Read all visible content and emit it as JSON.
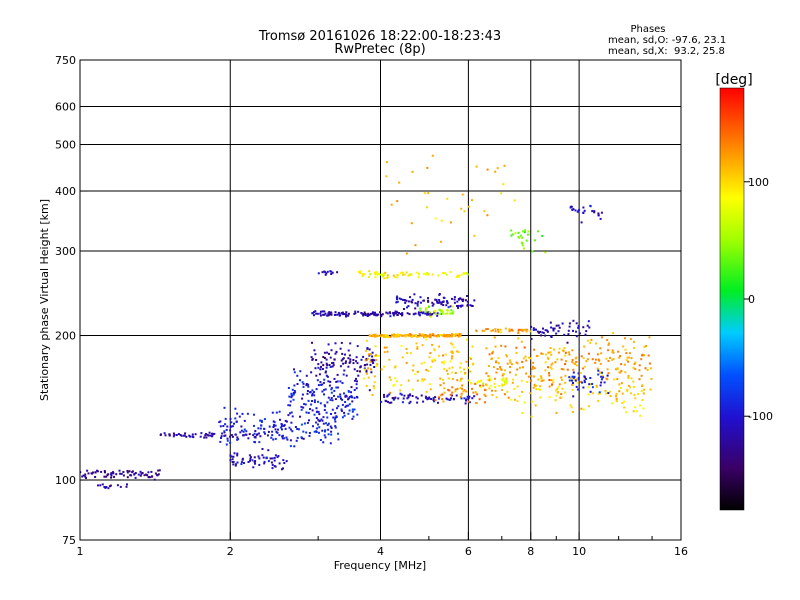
{
  "chart_data": {
    "type": "scatter",
    "title": "Tromsø 20161026 18:22:00-18:23:43",
    "subtitle": "RwPretec (8p)",
    "xlabel": "Frequency [MHz]",
    "ylabel": "Stationary phase Virtual Height [km]",
    "x_scale": "log",
    "y_scale": "log",
    "xlim": [
      1,
      16
    ],
    "ylim": [
      75,
      750
    ],
    "x_ticks": [
      1,
      2,
      4,
      6,
      8,
      10,
      16
    ],
    "y_ticks": [
      75,
      100,
      200,
      300,
      400,
      500,
      600,
      750
    ],
    "x_gridlines": [
      2,
      4,
      6,
      8,
      10
    ],
    "y_gridlines": [
      100,
      200,
      300,
      400,
      500,
      600
    ],
    "grid": true,
    "phases_note": {
      "heading": "Phases",
      "line_o": "mean, sd,O: -97.6, 23.1",
      "line_x": "mean, sd,X:  93.2, 25.8"
    },
    "colorbar": {
      "unit_label": "[deg]",
      "range": [
        -180,
        180
      ],
      "ticks": [
        100,
        0,
        -100
      ],
      "placement": "right"
    },
    "echo_traces": [
      {
        "f_range": [
          1.0,
          1.45
        ],
        "h": 103,
        "spread": 3,
        "phase": -128,
        "n": 70
      },
      {
        "f_range": [
          1.08,
          1.25
        ],
        "h": 97,
        "spread": 2,
        "phase": -118,
        "n": 14
      },
      {
        "f_range": [
          1.45,
          2.3
        ],
        "h": 124,
        "spread": 2,
        "phase": -120,
        "n": 60
      },
      {
        "f_range": [
          1.9,
          3.3
        ],
        "h": 128,
        "spread": 14,
        "phase": -95,
        "n": 170
      },
      {
        "f_range": [
          2.0,
          2.6
        ],
        "h": 110,
        "spread": 6,
        "phase": -112,
        "n": 60
      },
      {
        "f_range": [
          2.6,
          3.6
        ],
        "h": 150,
        "spread": 25,
        "phase": -95,
        "n": 160
      },
      {
        "f_range": [
          2.9,
          3.9
        ],
        "h": 175,
        "spread": 25,
        "phase": -120,
        "n": 110
      },
      {
        "f_range": [
          2.9,
          5.3
        ],
        "h": 222,
        "spread": 3,
        "phase": -118,
        "n": 130
      },
      {
        "f_range": [
          3.0,
          3.3
        ],
        "h": 270,
        "spread": 3,
        "phase": -112,
        "n": 12
      },
      {
        "f_range": [
          3.5,
          6.0
        ],
        "h": 268,
        "spread": 5,
        "phase": 85,
        "n": 70
      },
      {
        "f_range": [
          3.8,
          5.8
        ],
        "h": 200,
        "spread": 2,
        "phase": 115,
        "n": 150
      },
      {
        "f_range": [
          4.0,
          6.3
        ],
        "h": 148,
        "spread": 4,
        "phase": -108,
        "n": 70
      },
      {
        "f_range": [
          3.7,
          6.2
        ],
        "h": 175,
        "spread": 28,
        "phase": 105,
        "n": 140
      },
      {
        "f_range": [
          4.3,
          6.2
        ],
        "h": 235,
        "spread": 10,
        "phase": -115,
        "n": 90
      },
      {
        "f_range": [
          4.8,
          5.6
        ],
        "h": 225,
        "spread": 6,
        "phase": 55,
        "n": 30
      },
      {
        "f_range": [
          5.0,
          6.5
        ],
        "h": 152,
        "spread": 8,
        "phase": 130,
        "n": 40
      },
      {
        "f_range": [
          6.0,
          7.2
        ],
        "h": 160,
        "spread": 6,
        "phase": 80,
        "n": 30
      },
      {
        "f_range": [
          6.2,
          8.0
        ],
        "h": 205,
        "spread": 2,
        "phase": 120,
        "n": 30
      },
      {
        "f_range": [
          6.5,
          14.0
        ],
        "h": 175,
        "spread": 28,
        "phase": 120,
        "n": 260
      },
      {
        "f_range": [
          7.0,
          13.5
        ],
        "h": 150,
        "spread": 15,
        "phase": 100,
        "n": 90
      },
      {
        "f_range": [
          8.0,
          10.5
        ],
        "h": 205,
        "spread": 12,
        "phase": -110,
        "n": 50
      },
      {
        "f_range": [
          9.5,
          11.5
        ],
        "h": 160,
        "spread": 12,
        "phase": -95,
        "n": 40
      },
      {
        "f_range": [
          7.3,
          8.6
        ],
        "h": 320,
        "spread": 25,
        "phase": 40,
        "n": 25
      },
      {
        "f_range": [
          9.6,
          11.2
        ],
        "h": 360,
        "spread": 25,
        "phase": -110,
        "n": 25
      },
      {
        "f_range": [
          4.0,
          7.5
        ],
        "h": 400,
        "spread": 130,
        "phase": 110,
        "n": 35
      }
    ]
  }
}
